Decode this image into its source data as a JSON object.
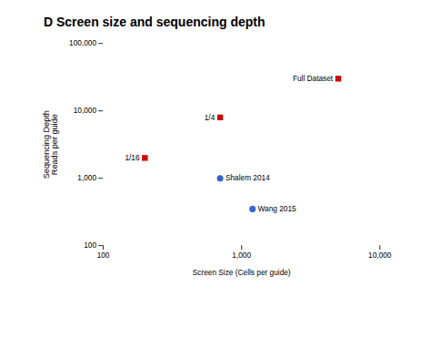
{
  "chart_data": {
    "type": "scatter",
    "title": "D Screen size and sequencing depth",
    "xlabel": "Screen Size (Cells per guide)",
    "ylabel": "Sequencing Depth\nReads per guide",
    "log": true,
    "grid": false,
    "xlim": [
      100,
      10000
    ],
    "ylim": [
      100,
      100000
    ],
    "xticks": [
      100,
      {
        "value": 1000,
        "label": "1,000"
      },
      {
        "value": 10000,
        "label": "10,000"
      }
    ],
    "yticks": [
      100,
      {
        "value": 1000,
        "label": "1,000"
      },
      {
        "value": 10000,
        "label": "10,000"
      },
      {
        "value": 100000,
        "label": "100,000"
      }
    ],
    "series": [
      {
        "color": "#cc0000",
        "marker": "square",
        "x": [
          5000,
          700,
          200
        ],
        "values": [
          30000,
          8000,
          2000
        ],
        "labels": [
          "Full Dataset",
          "1/4",
          "1/16"
        ]
      },
      {
        "color": "#3366cc",
        "marker": "circle",
        "x": [
          700,
          1200
        ],
        "values": [
          1000,
          350
        ],
        "labels": [
          "Shalem 2014",
          "Wang 2015"
        ]
      }
    ]
  }
}
